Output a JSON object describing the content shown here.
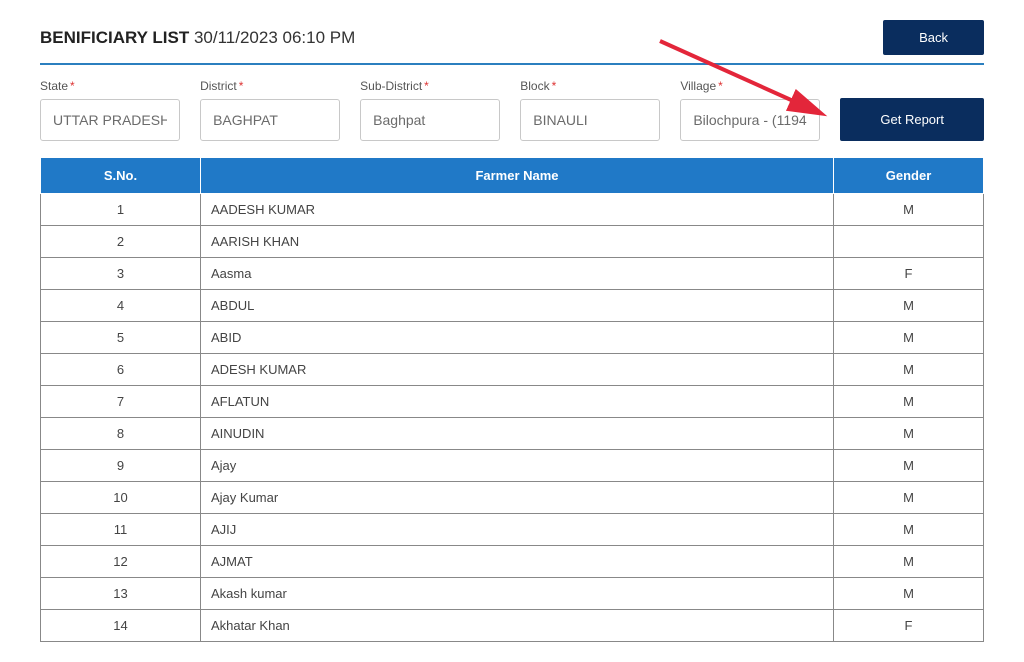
{
  "header": {
    "title_bold": "BENIFICIARY LIST",
    "title_timestamp": "30/11/2023 06:10 PM",
    "back_label": "Back"
  },
  "filters": {
    "state": {
      "label": "State",
      "value": "UTTAR PRADESH"
    },
    "district": {
      "label": "District",
      "value": "BAGHPAT"
    },
    "subdistrict": {
      "label": "Sub-District",
      "value": "Baghpat"
    },
    "block": {
      "label": "Block",
      "value": "BINAULI"
    },
    "village": {
      "label": "Village",
      "value": "Bilochpura - (1194"
    },
    "get_report_label": "Get Report"
  },
  "table": {
    "columns": {
      "sno": "S.No.",
      "name": "Farmer Name",
      "gender": "Gender"
    },
    "rows": [
      {
        "sno": "1",
        "name": "AADESH KUMAR",
        "gender": "M"
      },
      {
        "sno": "2",
        "name": "AARISH KHAN",
        "gender": ""
      },
      {
        "sno": "3",
        "name": "Aasma",
        "gender": "F"
      },
      {
        "sno": "4",
        "name": "ABDUL",
        "gender": "M"
      },
      {
        "sno": "5",
        "name": "ABID",
        "gender": "M"
      },
      {
        "sno": "6",
        "name": "ADESH KUMAR",
        "gender": "M"
      },
      {
        "sno": "7",
        "name": "AFLATUN",
        "gender": "M"
      },
      {
        "sno": "8",
        "name": "AINUDIN",
        "gender": "M"
      },
      {
        "sno": "9",
        "name": "Ajay",
        "gender": "M"
      },
      {
        "sno": "10",
        "name": "Ajay Kumar",
        "gender": "M"
      },
      {
        "sno": "11",
        "name": "AJIJ",
        "gender": "M"
      },
      {
        "sno": "12",
        "name": "AJMAT",
        "gender": "M"
      },
      {
        "sno": "13",
        "name": "Akash kumar",
        "gender": "M"
      },
      {
        "sno": "14",
        "name": "Akhatar Khan",
        "gender": "F"
      }
    ]
  },
  "colors": {
    "button_bg": "#0a2d5e",
    "header_bg": "#2079c7",
    "underline": "#2b7fbf",
    "arrow": "#e3263a"
  }
}
